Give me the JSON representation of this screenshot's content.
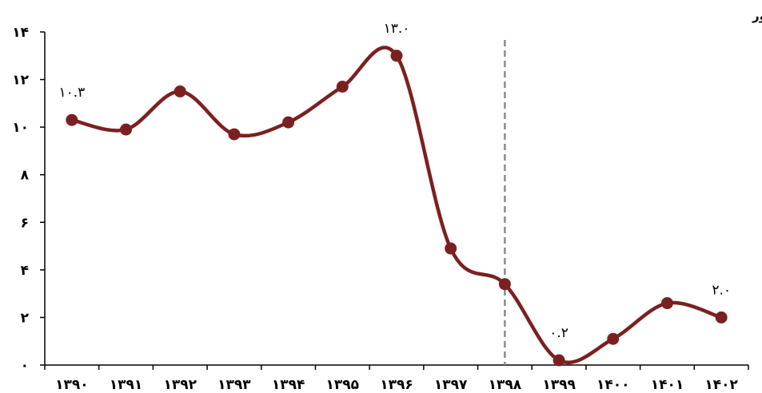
{
  "chart_data": {
    "type": "line",
    "categories": [
      "۱۳۹۰",
      "۱۳۹۱",
      "۱۳۹۲",
      "۱۳۹۳",
      "۱۳۹۴",
      "۱۳۹۵",
      "۱۳۹۶",
      "۱۳۹۷",
      "۱۳۹۸",
      "۱۳۹۹",
      "۱۴۰۰",
      "۱۴۰۱",
      "۱۴۰۲"
    ],
    "series": [
      {
        "values": [
          10.3,
          9.9,
          11.5,
          9.7,
          10.2,
          11.7,
          13.0,
          4.9,
          3.4,
          0.2,
          1.1,
          2.6,
          2.0
        ]
      }
    ],
    "ylim": [
      0,
      14
    ],
    "yticks": [
      0,
      2,
      4,
      6,
      8,
      10,
      12,
      14
    ],
    "ytick_labels": [
      "۰",
      "۲",
      "۴",
      "۶",
      "۸",
      "۱۰",
      "۱۲",
      "۱۴"
    ],
    "data_labels": [
      {
        "index": 0,
        "text": "۱۰.۳"
      },
      {
        "index": 6,
        "text": "۱۳.۰"
      },
      {
        "index": 9,
        "text": "۰.۲"
      },
      {
        "index": 12,
        "text": "۲.۰"
      }
    ],
    "marker_category_index": 8,
    "annotation": "قانون حداکثر استفاده از توان تولیدی و خدماتی کشور",
    "xlabel": "",
    "ylabel": "",
    "grid": false,
    "legend": "none",
    "line_color": "#7b2020",
    "marker_line_color": "#8c8c8c"
  }
}
